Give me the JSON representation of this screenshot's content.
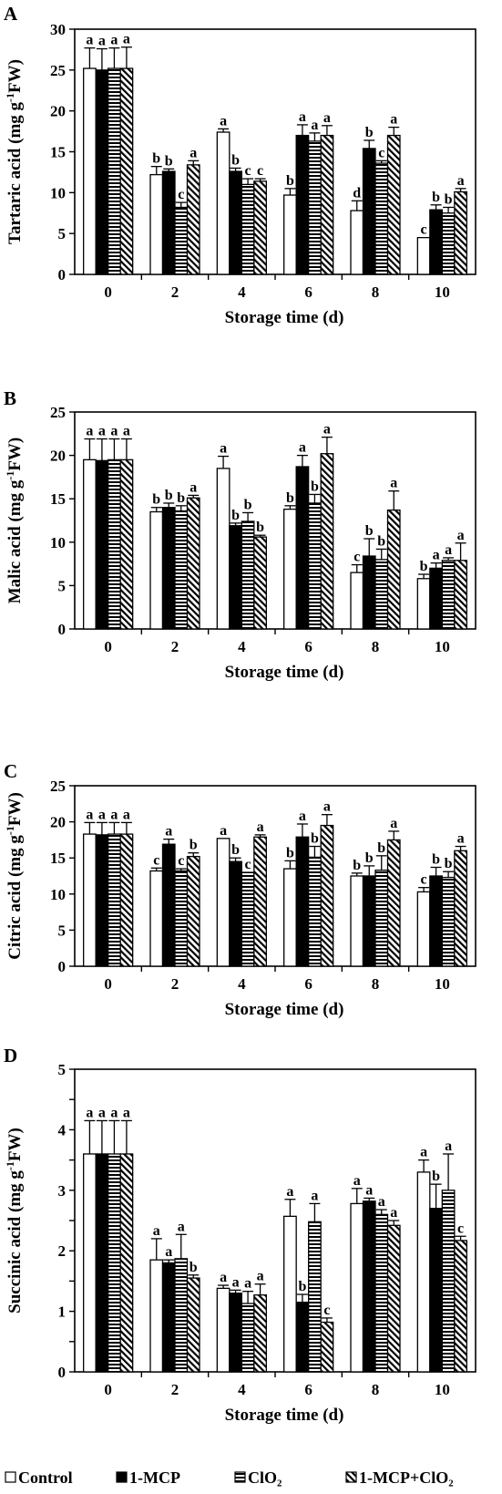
{
  "chart_data": [
    {
      "type": "bar",
      "panel": "A",
      "ylabel": "Tartaric acid (mg g-1FW)",
      "xlabel": "Storage time (d)",
      "categories": [
        "0",
        "2",
        "4",
        "6",
        "8",
        "10"
      ],
      "ylim": [
        0,
        30
      ],
      "yticks": [
        0,
        5,
        10,
        15,
        20,
        25,
        30
      ],
      "series": [
        {
          "name": "Control",
          "values": [
            25.2,
            12.2,
            17.4,
            9.7,
            7.8,
            4.5
          ],
          "errors": [
            2.5,
            1.0,
            0.4,
            0.8,
            1.2,
            0.0
          ],
          "letters": [
            "a",
            "b",
            "a",
            "b",
            "d",
            "c"
          ]
        },
        {
          "name": "1-MCP",
          "values": [
            25.0,
            12.6,
            12.6,
            17.0,
            15.4,
            7.9
          ],
          "errors": [
            2.6,
            0.3,
            0.4,
            1.3,
            1.0,
            0.6
          ],
          "letters": [
            "a",
            "b",
            "b",
            "a",
            "b",
            "b"
          ]
        },
        {
          "name": "ClO2",
          "values": [
            25.2,
            8.2,
            11.0,
            16.3,
            13.6,
            7.5
          ],
          "errors": [
            2.5,
            0.6,
            0.7,
            1.0,
            0.3,
            0.7
          ],
          "letters": [
            "a",
            "c",
            "c",
            "a",
            "c",
            "b"
          ]
        },
        {
          "name": "1-MCP+ClO2",
          "values": [
            25.2,
            13.4,
            11.4,
            17.0,
            17.0,
            10.1
          ],
          "errors": [
            2.6,
            0.5,
            0.3,
            1.2,
            1.0,
            0.4
          ],
          "letters": [
            "a",
            "a",
            "c",
            "a",
            "a",
            "a"
          ]
        }
      ]
    },
    {
      "type": "bar",
      "panel": "B",
      "ylabel": "Malic acid (mg g-1FW)",
      "xlabel": "Storage time (d)",
      "categories": [
        "0",
        "2",
        "4",
        "6",
        "8",
        "10"
      ],
      "ylim": [
        0,
        25
      ],
      "yticks": [
        0,
        5,
        10,
        15,
        20,
        25
      ],
      "series": [
        {
          "name": "Control",
          "values": [
            19.5,
            13.5,
            18.5,
            13.8,
            6.5,
            5.8
          ],
          "errors": [
            2.4,
            0.5,
            1.4,
            0.4,
            0.9,
            0.5
          ],
          "letters": [
            "a",
            "b",
            "a",
            "b",
            "c",
            "b"
          ]
        },
        {
          "name": "1-MCP",
          "values": [
            19.4,
            14.0,
            11.9,
            18.7,
            8.4,
            7.0
          ],
          "errors": [
            2.5,
            0.5,
            0.3,
            1.3,
            2.0,
            0.6
          ],
          "letters": [
            "a",
            "b",
            "b",
            "a",
            "b",
            "a"
          ]
        },
        {
          "name": "ClO2",
          "values": [
            19.5,
            13.6,
            12.4,
            14.5,
            8.0,
            7.9
          ],
          "errors": [
            2.4,
            0.6,
            1.0,
            1.0,
            1.2,
            0.3
          ],
          "letters": [
            "a",
            "b",
            "b",
            "b",
            "b",
            "a"
          ]
        },
        {
          "name": "1-MCP+ClO2",
          "values": [
            19.5,
            15.1,
            10.6,
            20.2,
            13.7,
            7.9
          ],
          "errors": [
            2.4,
            0.3,
            0.2,
            1.9,
            2.2,
            2.0
          ],
          "letters": [
            "a",
            "a",
            "b",
            "a",
            "a",
            "a"
          ]
        }
      ]
    },
    {
      "type": "bar",
      "panel": "C",
      "ylabel": "Citric acid (mg g-1FW)",
      "xlabel": "Storage time (d)",
      "categories": [
        "0",
        "2",
        "4",
        "6",
        "8",
        "10"
      ],
      "ylim": [
        0,
        25
      ],
      "yticks": [
        0,
        5,
        10,
        15,
        20,
        25
      ],
      "series": [
        {
          "name": "Control",
          "values": [
            18.3,
            13.2,
            17.7,
            13.5,
            12.5,
            10.3
          ],
          "errors": [
            1.6,
            0.4,
            0.0,
            1.1,
            0.4,
            0.6
          ],
          "letters": [
            "a",
            "c",
            "a",
            "b",
            "b",
            "c"
          ]
        },
        {
          "name": "1-MCP",
          "values": [
            18.2,
            16.9,
            14.5,
            17.9,
            12.5,
            12.5
          ],
          "errors": [
            1.7,
            0.7,
            0.5,
            1.8,
            1.4,
            1.2
          ],
          "letters": [
            "a",
            "a",
            "b",
            "a",
            "b",
            "b"
          ]
        },
        {
          "name": "ClO2",
          "values": [
            18.3,
            13.2,
            13.0,
            15.1,
            13.3,
            12.3
          ],
          "errors": [
            1.6,
            0.3,
            0.0,
            1.5,
            2.0,
            0.8
          ],
          "letters": [
            "a",
            "c",
            "c",
            "b",
            "b",
            "b"
          ]
        },
        {
          "name": "1-MCP+ClO2",
          "values": [
            18.3,
            15.2,
            17.9,
            19.5,
            17.5,
            16.0
          ],
          "errors": [
            1.6,
            0.5,
            0.3,
            1.5,
            1.2,
            0.6
          ],
          "letters": [
            "a",
            "b",
            "a",
            "a",
            "a",
            "a"
          ]
        }
      ]
    },
    {
      "type": "bar",
      "panel": "D",
      "ylabel": "Succinic acid (mg g-1FW)",
      "xlabel": "Storage time (d)",
      "categories": [
        "0",
        "2",
        "4",
        "6",
        "8",
        "10"
      ],
      "ylim": [
        0,
        5
      ],
      "yticks": [
        0,
        0.5,
        1,
        1.5,
        2,
        2.5,
        3,
        3.5,
        4,
        4.5,
        5
      ],
      "ytick_labels": [
        "0",
        "",
        "1",
        "",
        "2",
        "",
        "3",
        "",
        "4",
        "",
        "5"
      ],
      "series": [
        {
          "name": "Control",
          "values": [
            3.6,
            1.85,
            1.38,
            2.57,
            2.78,
            3.3
          ],
          "errors": [
            0.55,
            0.35,
            0.05,
            0.28,
            0.25,
            0.2
          ],
          "letters": [
            "a",
            "a",
            "a",
            "a",
            "a",
            "a"
          ]
        },
        {
          "name": "1-MCP",
          "values": [
            3.6,
            1.8,
            1.3,
            1.15,
            2.82,
            2.7
          ],
          "errors": [
            0.55,
            0.05,
            0.05,
            0.13,
            0.05,
            0.4
          ],
          "letters": [
            "a",
            "a",
            "a",
            "b",
            "a",
            "b"
          ]
        },
        {
          "name": "ClO2",
          "values": [
            3.6,
            1.87,
            1.13,
            2.48,
            2.6,
            3.0
          ],
          "errors": [
            0.55,
            0.4,
            0.2,
            0.3,
            0.08,
            0.6
          ],
          "letters": [
            "a",
            "a",
            "a",
            "a",
            "a",
            "a"
          ]
        },
        {
          "name": "1-MCP+ClO2",
          "values": [
            3.6,
            1.55,
            1.27,
            0.82,
            2.42,
            2.17
          ],
          "errors": [
            0.55,
            0.05,
            0.18,
            0.07,
            0.08,
            0.07
          ],
          "letters": [
            "a",
            "b",
            "a",
            "c",
            "a",
            "c"
          ]
        }
      ]
    }
  ],
  "legend": {
    "items": [
      {
        "label": "Control",
        "pattern": "open"
      },
      {
        "label": "1-MCP",
        "pattern": "solid"
      },
      {
        "label": "ClO₂",
        "pattern": "dotted"
      },
      {
        "label": "1-MCP+ClO₂",
        "pattern": "hatched"
      }
    ]
  }
}
